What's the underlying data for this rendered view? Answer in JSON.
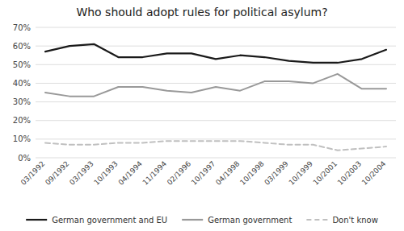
{
  "chart_data": {
    "type": "line",
    "title": "Who should adopt rules for political asylum?",
    "categories": [
      "03/1992",
      "09/1992",
      "03/1993",
      "10/1993",
      "04/1994",
      "11/1994",
      "02/1996",
      "10/1997",
      "04/1998",
      "10/1998",
      "03/1999",
      "10/1999",
      "10/2001",
      "10/2003",
      "10/2004"
    ],
    "series": [
      {
        "name": "German government and EU",
        "color": "#1a1a1a",
        "values": [
          57,
          60,
          61,
          54,
          54,
          56,
          56,
          53,
          55,
          54,
          52,
          51,
          51,
          53,
          58
        ]
      },
      {
        "name": "German government",
        "color": "#999999",
        "values": [
          35,
          33,
          33,
          38,
          38,
          36,
          35,
          38,
          36,
          41,
          41,
          40,
          45,
          37,
          37
        ]
      },
      {
        "name": "Don't know",
        "color": "#c0c0c0",
        "line_style": "dashed",
        "values": [
          8,
          7,
          7,
          8,
          8,
          9,
          9,
          9,
          9,
          8,
          7,
          7,
          4,
          5,
          6
        ]
      }
    ],
    "ylim": [
      0,
      70
    ],
    "yticks": [
      {
        "value": 0,
        "label": "0%"
      },
      {
        "value": 10,
        "label": "10%"
      },
      {
        "value": 20,
        "label": "20%"
      },
      {
        "value": 30,
        "label": "30%"
      },
      {
        "value": 40,
        "label": "40%"
      },
      {
        "value": 50,
        "label": "50%"
      },
      {
        "value": 60,
        "label": "60%"
      },
      {
        "value": 70,
        "label": "70%"
      }
    ],
    "grid": true,
    "legend": "bottom"
  }
}
